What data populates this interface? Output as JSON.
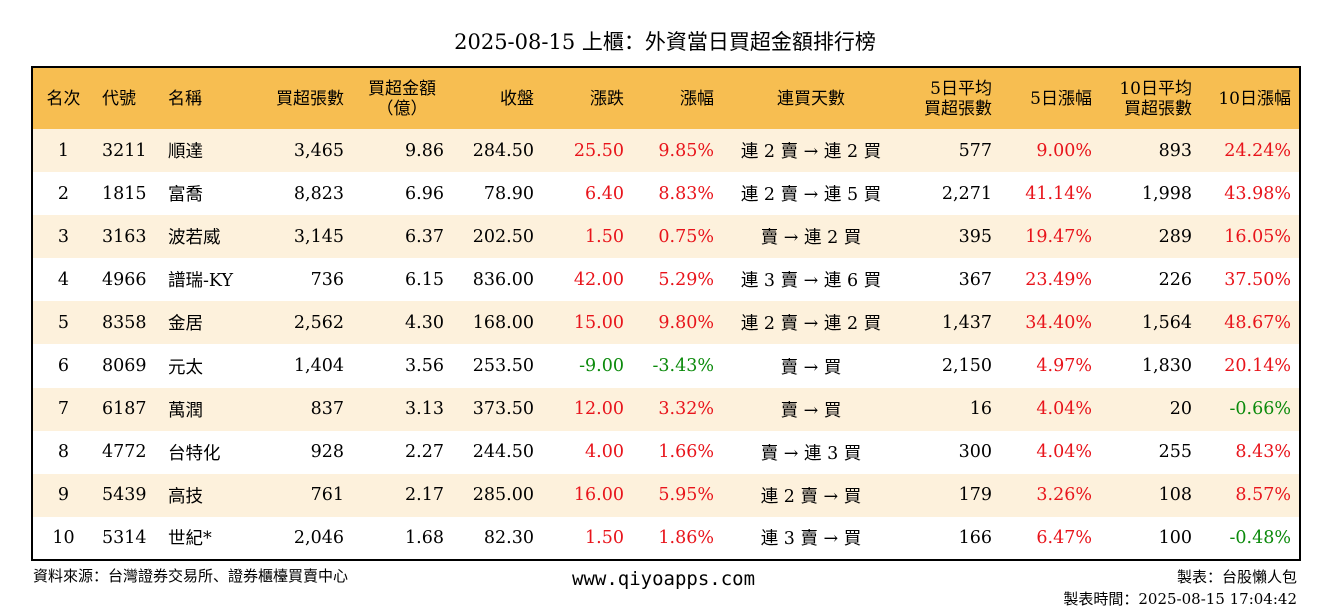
{
  "title": "2025-08-15 上櫃：外資當日買超金額排行榜",
  "headers": {
    "rank": "名次",
    "code": "代號",
    "name": "名稱",
    "shares": "買超張數",
    "amount_l1": "買超金額",
    "amount_l2": "（億）",
    "close": "收盤",
    "change": "漲跌",
    "pct": "漲幅",
    "streak": "連買天數",
    "avg5_l1": "5日平均",
    "avg5_l2": "買超張數",
    "pct5": "5日漲幅",
    "avg10_l1": "10日平均",
    "avg10_l2": "買超張數",
    "pct10": "10日漲幅"
  },
  "rows": [
    {
      "rank": "1",
      "code": "3211",
      "name": "順達",
      "shares": "3,465",
      "amount": "9.86",
      "close": "284.50",
      "change": "25.50",
      "pct": "9.85%",
      "streak": "連 2 賣 → 連 2 買",
      "avg5": "577",
      "pct5": "9.00%",
      "avg10": "893",
      "pct10": "24.24%"
    },
    {
      "rank": "2",
      "code": "1815",
      "name": "富喬",
      "shares": "8,823",
      "amount": "6.96",
      "close": "78.90",
      "change": "6.40",
      "pct": "8.83%",
      "streak": "連 2 賣 → 連 5 買",
      "avg5": "2,271",
      "pct5": "41.14%",
      "avg10": "1,998",
      "pct10": "43.98%"
    },
    {
      "rank": "3",
      "code": "3163",
      "name": "波若威",
      "shares": "3,145",
      "amount": "6.37",
      "close": "202.50",
      "change": "1.50",
      "pct": "0.75%",
      "streak": "賣 → 連 2 買",
      "avg5": "395",
      "pct5": "19.47%",
      "avg10": "289",
      "pct10": "16.05%"
    },
    {
      "rank": "4",
      "code": "4966",
      "name": "譜瑞-KY",
      "shares": "736",
      "amount": "6.15",
      "close": "836.00",
      "change": "42.00",
      "pct": "5.29%",
      "streak": "連 3 賣 → 連 6 買",
      "avg5": "367",
      "pct5": "23.49%",
      "avg10": "226",
      "pct10": "37.50%"
    },
    {
      "rank": "5",
      "code": "8358",
      "name": "金居",
      "shares": "2,562",
      "amount": "4.30",
      "close": "168.00",
      "change": "15.00",
      "pct": "9.80%",
      "streak": "連 2 賣 → 連 2 買",
      "avg5": "1,437",
      "pct5": "34.40%",
      "avg10": "1,564",
      "pct10": "48.67%"
    },
    {
      "rank": "6",
      "code": "8069",
      "name": "元太",
      "shares": "1,404",
      "amount": "3.56",
      "close": "253.50",
      "change": "-9.00",
      "pct": "-3.43%",
      "streak": "賣 → 買",
      "avg5": "2,150",
      "pct5": "4.97%",
      "avg10": "1,830",
      "pct10": "20.14%"
    },
    {
      "rank": "7",
      "code": "6187",
      "name": "萬潤",
      "shares": "837",
      "amount": "3.13",
      "close": "373.50",
      "change": "12.00",
      "pct": "3.32%",
      "streak": "賣 → 買",
      "avg5": "16",
      "pct5": "4.04%",
      "avg10": "20",
      "pct10": "-0.66%"
    },
    {
      "rank": "8",
      "code": "4772",
      "name": "台特化",
      "shares": "928",
      "amount": "2.27",
      "close": "244.50",
      "change": "4.00",
      "pct": "1.66%",
      "streak": "賣 → 連 3 買",
      "avg5": "300",
      "pct5": "4.04%",
      "avg10": "255",
      "pct10": "8.43%"
    },
    {
      "rank": "9",
      "code": "5439",
      "name": "高技",
      "shares": "761",
      "amount": "2.17",
      "close": "285.00",
      "change": "16.00",
      "pct": "5.95%",
      "streak": "連 2 賣 → 買",
      "avg5": "179",
      "pct5": "3.26%",
      "avg10": "108",
      "pct10": "8.57%"
    },
    {
      "rank": "10",
      "code": "5314",
      "name": "世紀*",
      "shares": "2,046",
      "amount": "1.68",
      "close": "82.30",
      "change": "1.50",
      "pct": "1.86%",
      "streak": "連 3 賣 → 買",
      "avg5": "166",
      "pct5": "6.47%",
      "avg10": "100",
      "pct10": "-0.48%"
    }
  ],
  "colors": {
    "header_bg": "#f7be51",
    "row_odd_bg": "#fdf1dc",
    "up": "#e8141b",
    "down": "#0b8a0b"
  },
  "footer": {
    "source": "資料來源：台灣證券交易所、證券櫃檯買賣中心",
    "website": "www.qiyoapps.com",
    "maker": "製表：台股懶人包",
    "made_time": "製表時間：2025-08-15 17:04:42"
  }
}
